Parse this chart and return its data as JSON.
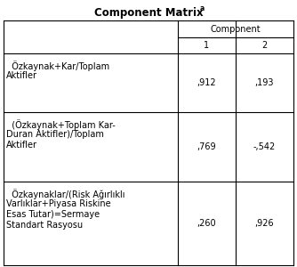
{
  "title": "Component Matrix",
  "title_superscript": "a",
  "col_header_top": "Component",
  "col_headers": [
    "1",
    "2"
  ],
  "row_labels_lines": [
    [
      "  Özkaynak+Kar/Toplam",
      "Aktifler",
      "",
      ""
    ],
    [
      "  (Özkaynak+Toplam Kar-",
      "Duran Aktifler)/Toplam",
      "Aktifler",
      ""
    ],
    [
      "  Özkaynaklar/(Risk Ağırlıklı",
      "Varlıklar+Piyasa Riskine",
      "Esas Tutar)=Sermaye",
      "Standart Rasyosu"
    ]
  ],
  "values": [
    [
      ",912",
      ",193"
    ],
    [
      ",769",
      "-,542"
    ],
    [
      ",260",
      ",926"
    ]
  ],
  "bg_color": "#ffffff",
  "text_color": "#000000",
  "font_size": 7.0,
  "title_font_size": 8.5,
  "fig_width": 3.34,
  "fig_height": 3.0,
  "dpi": 100
}
